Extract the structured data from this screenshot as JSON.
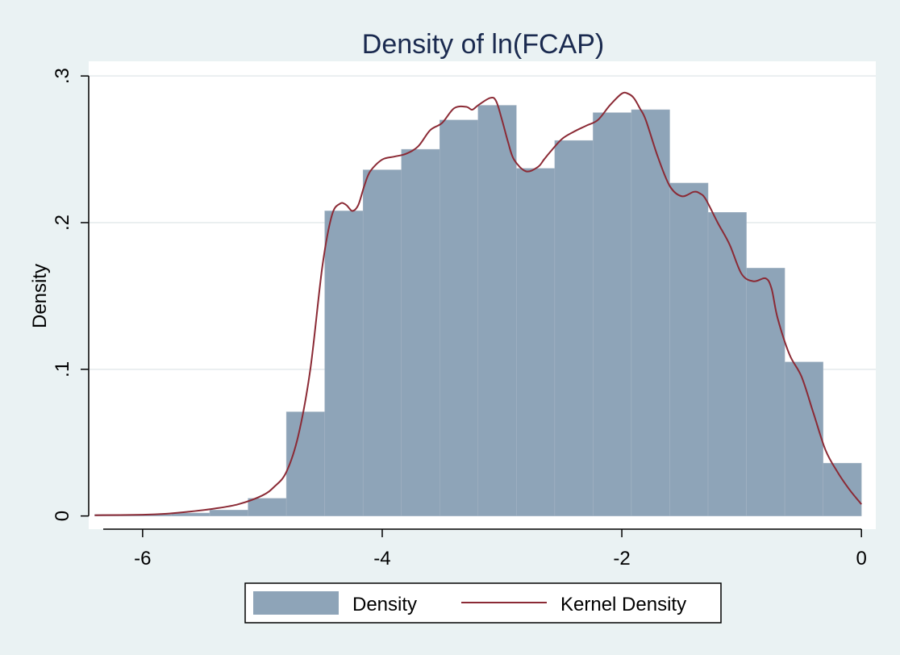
{
  "chart_data": {
    "type": "bar",
    "title": "Density of ln(FCAP)",
    "xlabel": "",
    "ylabel": "Density",
    "xlim": [
      -6.45,
      0.12
    ],
    "ylim": [
      -0.009,
      0.31
    ],
    "x_ticks": [
      -6,
      -4,
      -2,
      0
    ],
    "x_tick_labels": [
      "-6",
      "-4",
      "-2",
      "0"
    ],
    "y_ticks": [
      0,
      0.1,
      0.2,
      0.3
    ],
    "y_tick_labels": [
      "0",
      ".1",
      ".2",
      ".3"
    ],
    "grid": true,
    "legend_position": "bottom",
    "series": [
      {
        "name": "Density",
        "kind": "histogram",
        "color": "#8ea4b8",
        "bins": [
          {
            "x0": -6.4,
            "x1": -6.08,
            "value": 0.001
          },
          {
            "x0": -6.08,
            "x1": -5.76,
            "value": 0.001
          },
          {
            "x0": -5.76,
            "x1": -5.44,
            "value": 0.002
          },
          {
            "x0": -5.44,
            "x1": -5.12,
            "value": 0.004
          },
          {
            "x0": -5.12,
            "x1": -4.8,
            "value": 0.012
          },
          {
            "x0": -4.8,
            "x1": -4.48,
            "value": 0.071
          },
          {
            "x0": -4.48,
            "x1": -4.16,
            "value": 0.208
          },
          {
            "x0": -4.16,
            "x1": -3.84,
            "value": 0.236
          },
          {
            "x0": -3.84,
            "x1": -3.52,
            "value": 0.25
          },
          {
            "x0": -3.52,
            "x1": -3.2,
            "value": 0.27
          },
          {
            "x0": -3.2,
            "x1": -2.88,
            "value": 0.28
          },
          {
            "x0": -2.88,
            "x1": -2.56,
            "value": 0.237
          },
          {
            "x0": -2.56,
            "x1": -2.24,
            "value": 0.256
          },
          {
            "x0": -2.24,
            "x1": -1.92,
            "value": 0.275
          },
          {
            "x0": -1.92,
            "x1": -1.6,
            "value": 0.277
          },
          {
            "x0": -1.6,
            "x1": -1.28,
            "value": 0.227
          },
          {
            "x0": -1.28,
            "x1": -0.96,
            "value": 0.207
          },
          {
            "x0": -0.96,
            "x1": -0.64,
            "value": 0.169
          },
          {
            "x0": -0.64,
            "x1": -0.32,
            "value": 0.105
          },
          {
            "x0": -0.32,
            "x1": 0.0,
            "value": 0.036
          }
        ]
      },
      {
        "name": "Kernel Density",
        "kind": "line",
        "color": "#8b2a35",
        "x": [
          -6.4,
          -6.0,
          -5.8,
          -5.6,
          -5.4,
          -5.2,
          -5.0,
          -4.9,
          -4.8,
          -4.7,
          -4.6,
          -4.5,
          -4.42,
          -4.35,
          -4.3,
          -4.25,
          -4.2,
          -4.15,
          -4.1,
          -4.0,
          -3.9,
          -3.8,
          -3.7,
          -3.6,
          -3.5,
          -3.4,
          -3.3,
          -3.25,
          -3.2,
          -3.1,
          -3.05,
          -3.0,
          -2.95,
          -2.9,
          -2.8,
          -2.7,
          -2.65,
          -2.6,
          -2.5,
          -2.4,
          -2.3,
          -2.2,
          -2.1,
          -2.0,
          -1.95,
          -1.9,
          -1.85,
          -1.8,
          -1.7,
          -1.6,
          -1.5,
          -1.4,
          -1.35,
          -1.3,
          -1.2,
          -1.1,
          -1.0,
          -0.9,
          -0.8,
          -0.75,
          -0.7,
          -0.6,
          -0.5,
          -0.4,
          -0.3,
          -0.2,
          -0.1,
          0.0
        ],
        "values": [
          0.0005,
          0.0008,
          0.0015,
          0.003,
          0.005,
          0.008,
          0.014,
          0.02,
          0.03,
          0.055,
          0.1,
          0.17,
          0.205,
          0.213,
          0.212,
          0.208,
          0.212,
          0.225,
          0.235,
          0.243,
          0.245,
          0.247,
          0.252,
          0.263,
          0.268,
          0.278,
          0.279,
          0.277,
          0.28,
          0.285,
          0.283,
          0.27,
          0.255,
          0.243,
          0.235,
          0.238,
          0.243,
          0.248,
          0.257,
          0.262,
          0.266,
          0.27,
          0.28,
          0.288,
          0.288,
          0.285,
          0.278,
          0.27,
          0.245,
          0.225,
          0.218,
          0.221,
          0.22,
          0.216,
          0.2,
          0.185,
          0.165,
          0.16,
          0.162,
          0.155,
          0.135,
          0.11,
          0.095,
          0.07,
          0.045,
          0.03,
          0.018,
          0.008
        ]
      }
    ]
  }
}
